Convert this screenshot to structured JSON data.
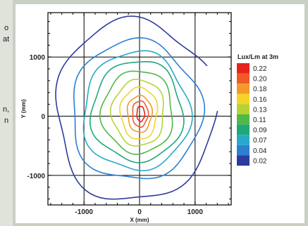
{
  "side_text": [
    "o",
    "at",
    "n,",
    "n"
  ],
  "chart_data": {
    "type": "heatmap",
    "subtype": "contour",
    "title": "",
    "xlabel": "X (mm)",
    "ylabel": "Y (mm)",
    "xlim": [
      -1650,
      1650
    ],
    "ylim": [
      -1500,
      1750
    ],
    "x_ticks": [
      -1000,
      0,
      1000
    ],
    "y_ticks": [
      1000,
      0,
      -1000
    ],
    "x_tick_labels": [
      "-1000",
      "0",
      "1000"
    ],
    "y_tick_labels": [
      "1000",
      "0",
      "-1000"
    ],
    "grid": true,
    "legend": {
      "title": "Lux/Lm at 3m",
      "placement": "right",
      "levels": [
        0.22,
        0.2,
        0.18,
        0.16,
        0.13,
        0.11,
        0.09,
        0.07,
        0.04,
        0.02
      ],
      "labels": [
        "0.22",
        "0.20",
        "0.18",
        "0.16",
        "0.13",
        "0.11",
        "0.09",
        "0.07",
        "0.04",
        "0.02"
      ],
      "colors": [
        "#e8231c",
        "#f05a28",
        "#f39a2a",
        "#f5d42a",
        "#b6d333",
        "#4fb848",
        "#1fa87a",
        "#27a9c9",
        "#2d7fd0",
        "#2e3a9c"
      ]
    },
    "contours": [
      {
        "level": 0.02,
        "color": "#2e3a9c",
        "rx": 1440,
        "ry": 1530,
        "cx": -80,
        "cy": 90,
        "arc": [
          0.08,
          1.0
        ]
      },
      {
        "level": 0.04,
        "color": "#2d7fd0",
        "rx": 1170,
        "ry": 1180,
        "cx": -70,
        "cy": 90,
        "arc": [
          0,
          1
        ]
      },
      {
        "level": 0.07,
        "color": "#27a9c9",
        "rx": 960,
        "ry": 1000,
        "cx": -60,
        "cy": 80,
        "arc": [
          0,
          1
        ]
      },
      {
        "level": 0.09,
        "color": "#1fa87a",
        "rx": 820,
        "ry": 850,
        "cx": -40,
        "cy": 80,
        "arc": [
          0,
          1
        ]
      },
      {
        "level": 0.11,
        "color": "#4fb848",
        "rx": 640,
        "ry": 700,
        "cx": -30,
        "cy": 70,
        "arc": [
          0,
          1
        ]
      },
      {
        "level": 0.13,
        "color": "#b6d333",
        "rx": 470,
        "ry": 560,
        "cx": -20,
        "cy": 60,
        "arc": [
          0,
          1
        ]
      },
      {
        "level": 0.16,
        "color": "#f5d42a",
        "rx": 330,
        "ry": 440,
        "cx": -10,
        "cy": 50,
        "arc": [
          0,
          1
        ]
      },
      {
        "level": 0.18,
        "color": "#f39a2a",
        "rx": 220,
        "ry": 310,
        "cx": 0,
        "cy": 40,
        "arc": [
          0,
          1
        ]
      },
      {
        "level": 0.2,
        "color": "#f05a28",
        "rx": 140,
        "ry": 220,
        "cx": 10,
        "cy": 40,
        "arc": [
          0,
          1
        ]
      },
      {
        "level": 0.22,
        "color": "#e8231c",
        "rx": 70,
        "ry": 130,
        "cx": 20,
        "cy": 40,
        "arc": [
          0,
          1
        ]
      }
    ],
    "outer_arc": {
      "level": 0.02,
      "color": "#2e3a9c"
    }
  }
}
